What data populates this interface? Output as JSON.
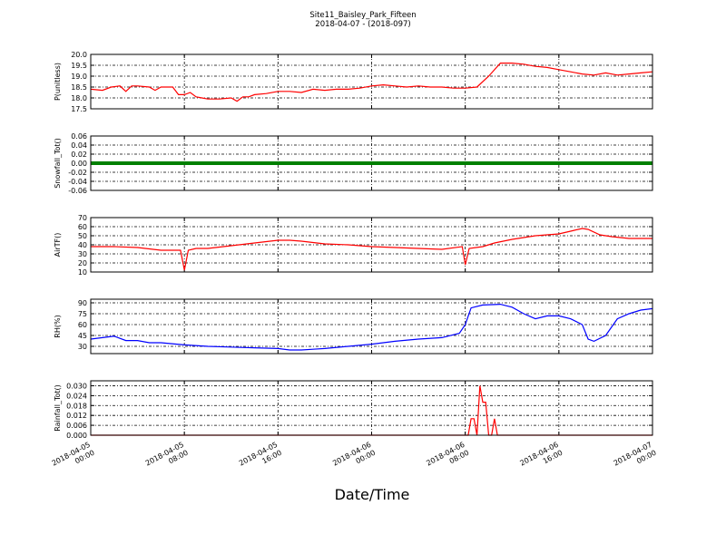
{
  "title": "Site11_Baisley_Park_Fifteen",
  "subtitle": "2018-04-07 - (2018-097)",
  "xlabel": "Date/Time",
  "x_ticks": [
    {
      "line1": "2018-04-05",
      "line2": "00:00"
    },
    {
      "line1": "2018-04-05",
      "line2": "08:00"
    },
    {
      "line1": "2018-04-05",
      "line2": "16:00"
    },
    {
      "line1": "2018-04-06",
      "line2": "00:00"
    },
    {
      "line1": "2018-04-06",
      "line2": "08:00"
    },
    {
      "line1": "2018-04-06",
      "line2": "16:00"
    },
    {
      "line1": "2018-04-07",
      "line2": "00:00"
    }
  ],
  "chart_data": [
    {
      "type": "line",
      "ylabel": "P(unitless)",
      "color": "#ff0000",
      "ylim": [
        17.5,
        20.0
      ],
      "yticks": [
        "17.5",
        "18.0",
        "18.5",
        "19.0",
        "19.5",
        "20.0"
      ],
      "series": [
        {
          "x": [
            "2018-04-05 00:00",
            "2018-04-05 01:00",
            "2018-04-05 01:45",
            "2018-04-05 02:30",
            "2018-04-05 03:00",
            "2018-04-05 03:30",
            "2018-04-05 04:00",
            "2018-04-05 05:00",
            "2018-04-05 05:30",
            "2018-04-05 06:00",
            "2018-04-05 07:00",
            "2018-04-05 07:30",
            "2018-04-05 08:00",
            "2018-04-05 08:30",
            "2018-04-05 09:00",
            "2018-04-05 09:30",
            "2018-04-05 10:00",
            "2018-04-05 11:00",
            "2018-04-05 12:00",
            "2018-04-05 12:30",
            "2018-04-05 13:00",
            "2018-04-05 13:30",
            "2018-04-05 14:00",
            "2018-04-05 15:00",
            "2018-04-05 16:00",
            "2018-04-05 17:00",
            "2018-04-05 18:00",
            "2018-04-05 19:00",
            "2018-04-05 20:00",
            "2018-04-05 21:00",
            "2018-04-05 22:00",
            "2018-04-05 23:00",
            "2018-04-06 00:00",
            "2018-04-06 01:00",
            "2018-04-06 02:00",
            "2018-04-06 03:00",
            "2018-04-06 04:00",
            "2018-04-06 05:00",
            "2018-04-06 06:00",
            "2018-04-06 07:00",
            "2018-04-06 08:00",
            "2018-04-06 09:00",
            "2018-04-06 10:00",
            "2018-04-06 11:00",
            "2018-04-06 12:00",
            "2018-04-06 13:00",
            "2018-04-06 14:00",
            "2018-04-06 15:00",
            "2018-04-06 16:00",
            "2018-04-06 17:00",
            "2018-04-06 18:00",
            "2018-04-06 19:00",
            "2018-04-06 20:00",
            "2018-04-06 21:00",
            "2018-04-06 22:00",
            "2018-04-06 23:00",
            "2018-04-07 00:00"
          ],
          "y": [
            18.4,
            18.35,
            18.5,
            18.55,
            18.3,
            18.55,
            18.55,
            18.5,
            18.35,
            18.5,
            18.5,
            18.15,
            18.15,
            18.25,
            18.05,
            18.0,
            17.95,
            17.95,
            18.0,
            17.85,
            18.05,
            18.05,
            18.15,
            18.2,
            18.3,
            18.3,
            18.25,
            18.4,
            18.35,
            18.4,
            18.4,
            18.45,
            18.55,
            18.6,
            18.55,
            18.5,
            18.55,
            18.5,
            18.5,
            18.45,
            18.45,
            18.5,
            19.0,
            19.6,
            19.6,
            19.55,
            19.45,
            19.4,
            19.3,
            19.2,
            19.1,
            19.05,
            19.15,
            19.05,
            19.1,
            19.15,
            19.2
          ]
        }
      ]
    },
    {
      "type": "line",
      "ylabel": "Snowfall_Tot()",
      "color": "#008000",
      "ylim": [
        -0.06,
        0.06
      ],
      "yticks": [
        "-0.06",
        "-0.04",
        "-0.02",
        "0.00",
        "0.02",
        "0.04",
        "0.06"
      ],
      "series": [
        {
          "x": [
            "2018-04-05 00:00",
            "2018-04-07 00:00"
          ],
          "y": [
            0.0,
            0.0
          ]
        }
      ]
    },
    {
      "type": "line",
      "ylabel": "AirTF()",
      "color": "#ff0000",
      "ylim": [
        10,
        70
      ],
      "yticks": [
        "10",
        "20",
        "30",
        "40",
        "50",
        "60",
        "70"
      ],
      "series": [
        {
          "x": [
            "2018-04-05 00:00",
            "2018-04-05 02:00",
            "2018-04-05 04:00",
            "2018-04-05 06:00",
            "2018-04-05 07:40",
            "2018-04-05 08:00",
            "2018-04-05 08:20",
            "2018-04-05 09:00",
            "2018-04-05 10:00",
            "2018-04-05 12:00",
            "2018-04-05 14:00",
            "2018-04-05 16:00",
            "2018-04-05 17:00",
            "2018-04-05 18:00",
            "2018-04-05 20:00",
            "2018-04-05 22:00",
            "2018-04-06 00:00",
            "2018-04-06 02:00",
            "2018-04-06 04:00",
            "2018-04-06 06:00",
            "2018-04-06 07:45",
            "2018-04-06 08:00",
            "2018-04-06 08:20",
            "2018-04-06 09:30",
            "2018-04-06 10:30",
            "2018-04-06 12:00",
            "2018-04-06 14:00",
            "2018-04-06 16:00",
            "2018-04-06 17:00",
            "2018-04-06 18:00",
            "2018-04-06 18:30",
            "2018-04-06 19:30",
            "2018-04-06 20:30",
            "2018-04-06 22:00",
            "2018-04-07 00:00"
          ],
          "y": [
            38,
            38,
            37,
            34,
            34,
            12,
            34,
            36,
            36,
            39,
            42,
            45,
            45,
            44,
            41,
            40,
            38,
            37,
            36,
            35,
            38,
            18,
            36,
            38,
            42,
            46,
            50,
            52,
            55,
            58,
            57,
            51,
            49,
            47,
            47
          ]
        }
      ]
    },
    {
      "type": "line",
      "ylabel": "RH(%)",
      "color": "#0000ff",
      "ylim": [
        20,
        95
      ],
      "yticks": [
        "30",
        "45",
        "60",
        "75",
        "90"
      ],
      "series": [
        {
          "x": [
            "2018-04-05 00:00",
            "2018-04-05 01:00",
            "2018-04-05 02:00",
            "2018-04-05 03:00",
            "2018-04-05 04:00",
            "2018-04-05 05:00",
            "2018-04-05 06:00",
            "2018-04-05 08:00",
            "2018-04-05 10:00",
            "2018-04-05 12:00",
            "2018-04-05 14:00",
            "2018-04-05 16:00",
            "2018-04-05 17:00",
            "2018-04-05 18:00",
            "2018-04-05 19:00",
            "2018-04-05 20:00",
            "2018-04-05 22:00",
            "2018-04-06 00:00",
            "2018-04-06 02:00",
            "2018-04-06 04:00",
            "2018-04-06 06:00",
            "2018-04-06 07:30",
            "2018-04-06 08:00",
            "2018-04-06 08:30",
            "2018-04-06 09:30",
            "2018-04-06 11:00",
            "2018-04-06 12:00",
            "2018-04-06 13:00",
            "2018-04-06 14:00",
            "2018-04-06 15:00",
            "2018-04-06 16:00",
            "2018-04-06 17:00",
            "2018-04-06 18:00",
            "2018-04-06 18:30",
            "2018-04-06 19:00",
            "2018-04-06 20:00",
            "2018-04-06 21:00",
            "2018-04-06 22:00",
            "2018-04-06 23:00",
            "2018-04-07 00:00"
          ],
          "y": [
            40,
            42,
            44,
            38,
            38,
            35,
            35,
            32,
            30,
            29,
            28,
            27,
            25,
            25,
            26,
            27,
            30,
            33,
            37,
            40,
            42,
            48,
            60,
            83,
            87,
            88,
            84,
            75,
            68,
            72,
            72,
            68,
            60,
            40,
            37,
            45,
            68,
            75,
            80,
            82
          ]
        }
      ]
    },
    {
      "type": "line",
      "ylabel": "Rainfall_Tot()",
      "color": "#ff0000",
      "ylim": [
        0.0,
        0.033
      ],
      "yticks": [
        "0.000",
        "0.006",
        "0.012",
        "0.018",
        "0.024",
        "0.030"
      ],
      "series": [
        {
          "x": [
            "2018-04-05 00:00",
            "2018-04-06 08:15",
            "2018-04-06 08:30",
            "2018-04-06 08:45",
            "2018-04-06 09:00",
            "2018-04-06 09:15",
            "2018-04-06 09:30",
            "2018-04-06 09:45",
            "2018-04-06 10:00",
            "2018-04-06 10:15",
            "2018-04-06 10:30",
            "2018-04-06 10:45",
            "2018-04-06 11:00",
            "2018-04-07 00:00"
          ],
          "y": [
            0.0,
            0.0,
            0.01,
            0.01,
            0.0,
            0.03,
            0.02,
            0.02,
            0.0,
            0.0,
            0.01,
            0.0,
            0.0,
            0.0
          ]
        }
      ]
    }
  ]
}
